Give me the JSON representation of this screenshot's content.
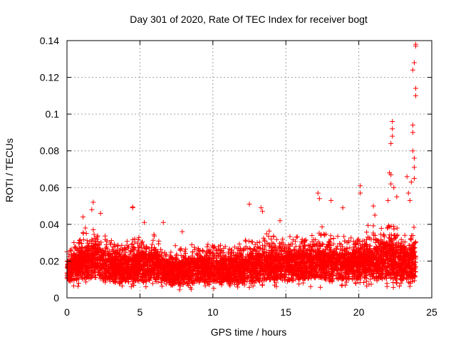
{
  "chart_data": {
    "type": "scatter",
    "title": "Day 301 of 2020, Rate Of TEC Index for receiver bogt",
    "xlabel": "GPS time / hours",
    "ylabel": "ROTI / TECUs",
    "xlim": [
      0,
      25
    ],
    "ylim": [
      0,
      0.14
    ],
    "x_ticks": [
      "0",
      "5",
      "10",
      "15",
      "20",
      "25"
    ],
    "y_ticks": [
      "0",
      "0.02",
      "0.04",
      "0.06",
      "0.08",
      "0.1",
      "0.12",
      "0.14"
    ],
    "x_tick_values": [
      0,
      5,
      10,
      15,
      20,
      25
    ],
    "y_tick_values": [
      0,
      0.02,
      0.04,
      0.06,
      0.08,
      0.1,
      0.12,
      0.14
    ],
    "grid": true,
    "marker": "+",
    "color": "#ff0000",
    "band_profile": [
      {
        "x": 0.0,
        "y_min": 0.005,
        "y_max": 0.03
      },
      {
        "x": 1.0,
        "y_min": 0.005,
        "y_max": 0.04
      },
      {
        "x": 2.0,
        "y_min": 0.005,
        "y_max": 0.045
      },
      {
        "x": 3.0,
        "y_min": 0.004,
        "y_max": 0.036
      },
      {
        "x": 4.0,
        "y_min": 0.004,
        "y_max": 0.034
      },
      {
        "x": 5.0,
        "y_min": 0.004,
        "y_max": 0.038
      },
      {
        "x": 6.0,
        "y_min": 0.005,
        "y_max": 0.038
      },
      {
        "x": 7.0,
        "y_min": 0.004,
        "y_max": 0.03
      },
      {
        "x": 8.0,
        "y_min": 0.004,
        "y_max": 0.03
      },
      {
        "x": 9.0,
        "y_min": 0.004,
        "y_max": 0.033
      },
      {
        "x": 10.0,
        "y_min": 0.004,
        "y_max": 0.034
      },
      {
        "x": 11.0,
        "y_min": 0.004,
        "y_max": 0.032
      },
      {
        "x": 12.0,
        "y_min": 0.004,
        "y_max": 0.035
      },
      {
        "x": 13.0,
        "y_min": 0.004,
        "y_max": 0.036
      },
      {
        "x": 14.0,
        "y_min": 0.004,
        "y_max": 0.04
      },
      {
        "x": 15.0,
        "y_min": 0.005,
        "y_max": 0.036
      },
      {
        "x": 16.0,
        "y_min": 0.005,
        "y_max": 0.038
      },
      {
        "x": 17.0,
        "y_min": 0.005,
        "y_max": 0.042
      },
      {
        "x": 18.0,
        "y_min": 0.005,
        "y_max": 0.04
      },
      {
        "x": 19.0,
        "y_min": 0.005,
        "y_max": 0.036
      },
      {
        "x": 20.0,
        "y_min": 0.005,
        "y_max": 0.04
      },
      {
        "x": 21.0,
        "y_min": 0.005,
        "y_max": 0.042
      },
      {
        "x": 22.0,
        "y_min": 0.004,
        "y_max": 0.048
      },
      {
        "x": 23.0,
        "y_min": 0.004,
        "y_max": 0.04
      },
      {
        "x": 23.9,
        "y_min": 0.005,
        "y_max": 0.045
      }
    ],
    "outliers": [
      {
        "x": 1.1,
        "y": 0.044
      },
      {
        "x": 1.7,
        "y": 0.048
      },
      {
        "x": 1.8,
        "y": 0.052
      },
      {
        "x": 2.3,
        "y": 0.046
      },
      {
        "x": 4.5,
        "y": 0.049
      },
      {
        "x": 4.5,
        "y": 0.0495
      },
      {
        "x": 5.3,
        "y": 0.041
      },
      {
        "x": 6.6,
        "y": 0.041
      },
      {
        "x": 7.9,
        "y": 0.036
      },
      {
        "x": 12.5,
        "y": 0.051
      },
      {
        "x": 13.3,
        "y": 0.049
      },
      {
        "x": 13.4,
        "y": 0.047
      },
      {
        "x": 14.6,
        "y": 0.042
      },
      {
        "x": 17.2,
        "y": 0.057
      },
      {
        "x": 17.3,
        "y": 0.054
      },
      {
        "x": 18.1,
        "y": 0.053
      },
      {
        "x": 18.9,
        "y": 0.049
      },
      {
        "x": 20.1,
        "y": 0.061
      },
      {
        "x": 20.1,
        "y": 0.057
      },
      {
        "x": 21.0,
        "y": 0.05
      },
      {
        "x": 21.1,
        "y": 0.045
      },
      {
        "x": 22.1,
        "y": 0.068
      },
      {
        "x": 22.2,
        "y": 0.084
      },
      {
        "x": 22.3,
        "y": 0.092
      },
      {
        "x": 22.3,
        "y": 0.096
      },
      {
        "x": 22.3,
        "y": 0.088
      },
      {
        "x": 22.2,
        "y": 0.067
      },
      {
        "x": 22.2,
        "y": 0.062
      },
      {
        "x": 22.4,
        "y": 0.06
      },
      {
        "x": 22.0,
        "y": 0.053
      },
      {
        "x": 22.6,
        "y": 0.055
      },
      {
        "x": 23.3,
        "y": 0.066
      },
      {
        "x": 23.4,
        "y": 0.057
      },
      {
        "x": 23.5,
        "y": 0.053
      },
      {
        "x": 23.6,
        "y": 0.063
      },
      {
        "x": 23.7,
        "y": 0.08
      },
      {
        "x": 23.7,
        "y": 0.094
      },
      {
        "x": 23.7,
        "y": 0.09
      },
      {
        "x": 23.8,
        "y": 0.076
      },
      {
        "x": 23.8,
        "y": 0.071
      },
      {
        "x": 23.8,
        "y": 0.065
      },
      {
        "x": 23.9,
        "y": 0.11
      },
      {
        "x": 23.9,
        "y": 0.114
      },
      {
        "x": 23.7,
        "y": 0.124
      },
      {
        "x": 23.8,
        "y": 0.128
      },
      {
        "x": 23.9,
        "y": 0.137
      },
      {
        "x": 23.9,
        "y": 0.138
      }
    ]
  }
}
